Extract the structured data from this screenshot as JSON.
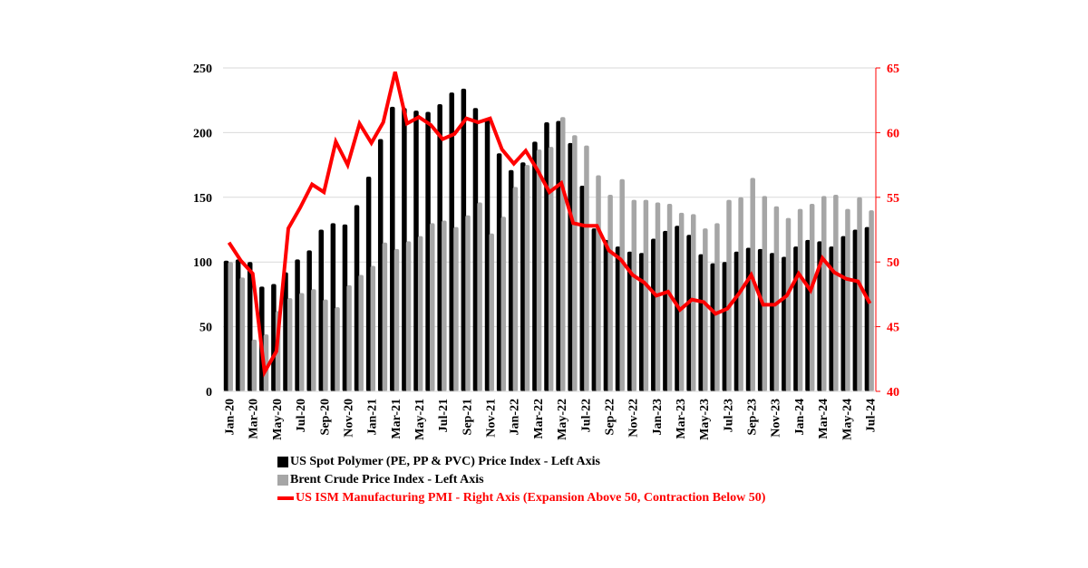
{
  "chart_data": {
    "type": "bar+line",
    "categories": [
      "Jan-20",
      "Feb-20",
      "Mar-20",
      "Apr-20",
      "May-20",
      "Jun-20",
      "Jul-20",
      "Aug-20",
      "Sep-20",
      "Oct-20",
      "Nov-20",
      "Dec-20",
      "Jan-21",
      "Feb-21",
      "Mar-21",
      "Apr-21",
      "May-21",
      "Jun-21",
      "Jul-21",
      "Aug-21",
      "Sep-21",
      "Oct-21",
      "Nov-21",
      "Dec-21",
      "Jan-22",
      "Feb-22",
      "Mar-22",
      "Apr-22",
      "May-22",
      "Jun-22",
      "Jul-22",
      "Aug-22",
      "Sep-22",
      "Oct-22",
      "Nov-22",
      "Dec-22",
      "Jan-23",
      "Feb-23",
      "Mar-23",
      "Apr-23",
      "May-23",
      "Jun-23",
      "Jul-23",
      "Aug-23",
      "Sep-23",
      "Oct-23",
      "Nov-23",
      "Dec-23",
      "Jan-24",
      "Feb-24",
      "Mar-24",
      "Apr-24",
      "May-24",
      "Jun-24",
      "Jul-24"
    ],
    "series": [
      {
        "name": "US Spot Polymer (PE, PP & PVC) Price Index - Left Axis",
        "type": "bar",
        "axis": "left",
        "color": "#000000",
        "values": [
          101,
          102,
          100,
          81,
          83,
          92,
          102,
          109,
          125,
          130,
          129,
          144,
          166,
          195,
          220,
          219,
          217,
          216,
          222,
          231,
          234,
          219,
          211,
          184,
          171,
          177,
          193,
          208,
          209,
          192,
          159,
          126,
          117,
          112,
          108,
          107,
          118,
          124,
          128,
          121,
          106,
          99,
          100,
          108,
          111,
          110,
          107,
          104,
          112,
          117,
          116,
          112,
          120,
          125,
          127
        ]
      },
      {
        "name": "Brent Crude Price Index - Left Axis",
        "type": "bar",
        "axis": "left",
        "color": "#a6a6a6",
        "values": [
          100,
          88,
          40,
          44,
          62,
          72,
          76,
          79,
          71,
          65,
          82,
          90,
          97,
          115,
          110,
          116,
          120,
          130,
          132,
          127,
          136,
          146,
          122,
          135,
          158,
          175,
          187,
          189,
          212,
          198,
          190,
          167,
          152,
          164,
          148,
          148,
          146,
          145,
          138,
          137,
          126,
          130,
          148,
          150,
          165,
          151,
          143,
          134,
          141,
          145,
          151,
          152,
          141,
          150,
          140
        ]
      },
      {
        "name": "US ISM Manufacturing PMI - Right Axis (Expansion Above 50, Contraction Below 50)",
        "type": "line",
        "axis": "right",
        "color": "#ff0000",
        "values": [
          51.5,
          50.1,
          49.1,
          41.5,
          43.1,
          52.6,
          54.2,
          56.0,
          55.4,
          59.3,
          57.5,
          60.7,
          59.2,
          60.8,
          64.7,
          60.7,
          61.2,
          60.6,
          59.5,
          59.9,
          61.1,
          60.8,
          61.1,
          58.7,
          57.6,
          58.6,
          57.1,
          55.4,
          56.1,
          53.0,
          52.8,
          52.8,
          50.9,
          50.2,
          49.0,
          48.4,
          47.4,
          47.7,
          46.3,
          47.1,
          46.9,
          46.0,
          46.4,
          47.6,
          49.0,
          46.7,
          46.7,
          47.4,
          49.1,
          47.8,
          50.3,
          49.2,
          48.7,
          48.5,
          46.8
        ]
      }
    ],
    "x_tick_labels": [
      "Jan-20",
      "Mar-20",
      "May-20",
      "Jul-20",
      "Sep-20",
      "Nov-20",
      "Jan-21",
      "Mar-21",
      "May-21",
      "Jul-21",
      "Sep-21",
      "Nov-21",
      "Jan-22",
      "Mar-22",
      "May-22",
      "Jul-22",
      "Sep-22",
      "Nov-22",
      "Jan-23",
      "Mar-23",
      "May-23",
      "Jul-23",
      "Sep-23",
      "Nov-23",
      "Jan-24",
      "Mar-24",
      "May-24",
      "Jul-24"
    ],
    "y_left": {
      "ylim": [
        0,
        250
      ],
      "ticks": [
        "0",
        "50",
        "100",
        "150",
        "200",
        "250"
      ]
    },
    "y_right": {
      "ylim": [
        40,
        65
      ],
      "ticks": [
        "40",
        "45",
        "50",
        "55",
        "60",
        "65"
      ],
      "color": "#ff0000"
    },
    "grid": true,
    "legend_position": "bottom"
  }
}
